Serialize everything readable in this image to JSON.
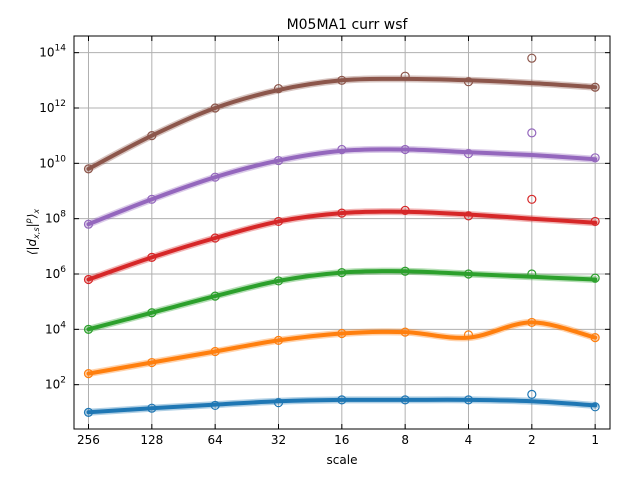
{
  "chart_data": {
    "type": "line",
    "title": "M05MA1 curr wsf",
    "xlabel": "scale",
    "ylabel": "⟨|d_{x,s}|^p⟩_x",
    "x_scale": "log2",
    "x_direction": "decreasing",
    "y_scale": "log10",
    "grid": true,
    "x_ticks": [
      256,
      128,
      64,
      32,
      16,
      8,
      4,
      2,
      1
    ],
    "x_tick_labels": [
      "256",
      "128",
      "64",
      "32",
      "16",
      "8",
      "4",
      "2",
      "1"
    ],
    "y_ticks": [
      100,
      10000,
      1000000,
      100000000,
      10000000000,
      1000000000000,
      100000000000000
    ],
    "y_tick_labels": [
      {
        "base": "10",
        "exp": "2"
      },
      {
        "base": "10",
        "exp": "4"
      },
      {
        "base": "10",
        "exp": "6"
      },
      {
        "base": "10",
        "exp": "8"
      },
      {
        "base": "10",
        "exp": "10"
      },
      {
        "base": "10",
        "exp": "12"
      },
      {
        "base": "10",
        "exp": "14"
      }
    ],
    "xlim": [
      300,
      0.85
    ],
    "ylim": [
      2.5,
      400000000000000.0
    ],
    "x": [
      256,
      128,
      64,
      32,
      16,
      8,
      4,
      2,
      1
    ],
    "series": [
      {
        "color": "#1f77b4",
        "log10_values": [
          1.0,
          1.15,
          1.25,
          1.35,
          1.45,
          1.45,
          1.45,
          1.65,
          1.2
        ],
        "curve_log10": [
          1.0,
          1.15,
          1.28,
          1.4,
          1.45,
          1.45,
          1.45,
          1.4,
          1.25
        ]
      },
      {
        "color": "#ff7f0e",
        "log10_values": [
          2.4,
          2.8,
          3.2,
          3.6,
          3.85,
          3.9,
          3.8,
          4.25,
          3.7
        ],
        "curve_log10": [
          2.4,
          2.8,
          3.2,
          3.6,
          3.85,
          3.9,
          3.7,
          4.25,
          3.7
        ]
      },
      {
        "color": "#2ca02c",
        "log10_values": [
          4.0,
          4.6,
          5.2,
          5.75,
          6.05,
          6.1,
          6.0,
          6.0,
          5.85
        ],
        "curve_log10": [
          4.0,
          4.6,
          5.2,
          5.75,
          6.05,
          6.1,
          6.0,
          5.9,
          5.8
        ]
      },
      {
        "color": "#d62728",
        "log10_values": [
          5.8,
          6.6,
          7.3,
          7.9,
          8.2,
          8.3,
          8.1,
          8.7,
          7.9
        ],
        "curve_log10": [
          5.8,
          6.6,
          7.3,
          7.9,
          8.2,
          8.25,
          8.15,
          8.0,
          7.85
        ]
      },
      {
        "color": "#9467bd",
        "log10_values": [
          7.8,
          8.7,
          9.5,
          10.1,
          10.5,
          10.5,
          10.35,
          11.1,
          10.2
        ],
        "curve_log10": [
          7.8,
          8.7,
          9.5,
          10.1,
          10.45,
          10.5,
          10.4,
          10.3,
          10.15
        ]
      },
      {
        "color": "#8c564b",
        "log10_values": [
          9.8,
          11.0,
          12.0,
          12.7,
          13.0,
          13.15,
          12.95,
          13.8,
          12.75
        ],
        "curve_log10": [
          9.8,
          11.0,
          12.0,
          12.65,
          13.0,
          13.05,
          13.0,
          12.9,
          12.75
        ]
      }
    ]
  }
}
